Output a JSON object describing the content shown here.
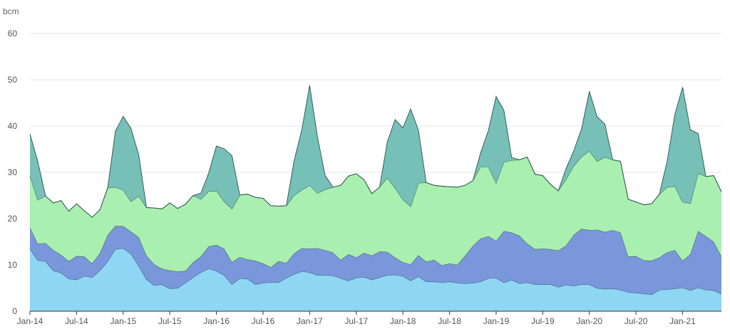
{
  "chart_data": {
    "type": "area",
    "stacked": true,
    "unit_label": "bcm",
    "title": "",
    "xlabel": "",
    "ylabel": "",
    "ylim": [
      0,
      60
    ],
    "y_ticks": [
      "0",
      "10",
      "20",
      "30",
      "40",
      "50",
      "60"
    ],
    "x_tick_labels": [
      "Jan-14",
      "Jul-14",
      "Jan-15",
      "Jul-15",
      "Jan-16",
      "Jul-16",
      "Jan-17",
      "Jul-17",
      "Jan-18",
      "Jul-18",
      "Jan-19",
      "Jul-19",
      "Jan-20",
      "Jul-20",
      "Jan-21"
    ],
    "x_start": "Jan-14",
    "grid": true,
    "legend": "none",
    "series": [
      {
        "color": "#8fd6f5",
        "values": [
          13.5,
          11.0,
          10.8,
          8.8,
          8.3,
          7.0,
          6.8,
          7.6,
          7.3,
          8.8,
          10.8,
          13.4,
          13.6,
          12.4,
          9.8,
          6.9,
          5.6,
          5.8,
          4.9,
          5.0,
          6.1,
          7.3,
          8.4,
          9.2,
          8.7,
          7.8,
          5.8,
          7.1,
          7.0,
          5.8,
          6.1,
          6.3,
          6.2,
          7.2,
          8.0,
          8.6,
          8.4,
          7.8,
          7.8,
          7.7,
          7.1,
          6.6,
          7.2,
          7.4,
          6.8,
          7.3,
          7.8,
          7.9,
          7.6,
          6.6,
          7.5,
          6.4,
          6.4,
          6.2,
          6.4,
          6.1,
          6.0,
          6.1,
          6.4,
          7.1,
          7.2,
          6.2,
          6.8,
          6.0,
          6.2,
          5.8,
          5.8,
          5.8,
          5.2,
          5.7,
          5.5,
          5.8,
          5.8,
          5.0,
          4.8,
          4.9,
          4.6,
          4.1,
          4.0,
          3.8,
          3.6,
          4.6,
          4.7,
          4.9,
          5.1,
          4.5,
          5.1,
          4.6,
          4.5,
          3.7
        ]
      },
      {
        "color": "#7b97dc",
        "values": [
          4.6,
          3.6,
          3.9,
          4.4,
          3.9,
          3.8,
          5.1,
          4.2,
          3.0,
          3.7,
          5.6,
          5.0,
          4.8,
          4.8,
          6.2,
          5.1,
          4.5,
          3.4,
          3.9,
          3.6,
          2.6,
          3.3,
          3.4,
          4.8,
          5.6,
          5.7,
          4.8,
          4.6,
          4.2,
          5.1,
          4.2,
          3.2,
          4.6,
          3.2,
          4.5,
          5.0,
          5.1,
          5.8,
          5.4,
          5.0,
          4.0,
          5.7,
          4.4,
          5.2,
          5.2,
          5.6,
          5.0,
          3.7,
          3.0,
          3.5,
          4.6,
          4.3,
          4.7,
          3.7,
          3.9,
          3.9,
          6.0,
          8.0,
          9.3,
          9.1,
          8.0,
          11.1,
          10.2,
          10.3,
          8.4,
          7.6,
          7.7,
          7.6,
          7.9,
          8.5,
          11.0,
          12.0,
          11.7,
          12.6,
          12.3,
          12.6,
          12.4,
          7.7,
          7.9,
          7.2,
          7.3,
          7.0,
          8.0,
          8.3,
          5.8,
          7.8,
          12.2,
          11.6,
          10.5,
          8.1
        ]
      },
      {
        "color": "#a9f0b0",
        "values": [
          11.2,
          9.4,
          10.2,
          10.2,
          11.7,
          10.8,
          11.3,
          9.9,
          10.0,
          9.4,
          10.2,
          8.4,
          7.8,
          6.5,
          8.9,
          10.4,
          12.2,
          12.9,
          14.6,
          13.6,
          14.4,
          14.4,
          12.4,
          11.9,
          11.7,
          10.2,
          11.5,
          13.4,
          14.1,
          13.7,
          14.1,
          13.3,
          11.9,
          12.4,
          12.5,
          12.6,
          13.7,
          11.9,
          13.1,
          14.1,
          16.1,
          16.9,
          18.1,
          15.8,
          13.4,
          13.9,
          16.0,
          15.0,
          13.5,
          12.5,
          15.6,
          17.1,
          16.1,
          17.1,
          16.6,
          16.8,
          15.2,
          14.1,
          15.5,
          15.0,
          12.5,
          14.9,
          15.6,
          16.4,
          18.7,
          16.2,
          15.8,
          14.0,
          12.9,
          14.3,
          14.9,
          15.6,
          17.1,
          14.8,
          16.2,
          15.2,
          15.4,
          12.4,
          11.7,
          12.0,
          12.3,
          13.6,
          14.1,
          13.8,
          12.7,
          11.0,
          12.5,
          12.9,
          14.3,
          14.0
        ]
      },
      {
        "color": "#76c0b8",
        "values": [
          9.0,
          8.4,
          0,
          0,
          0,
          0,
          0,
          0,
          0,
          0,
          0,
          12.1,
          15.9,
          15.8,
          8.9,
          0,
          0,
          0,
          0,
          0,
          0,
          0,
          1.3,
          3.9,
          9.7,
          11.4,
          11.5,
          0,
          0,
          0,
          0,
          0,
          0,
          0,
          7.5,
          13.1,
          21.6,
          12.2,
          3.0,
          0,
          0,
          0,
          0,
          0,
          0,
          0,
          7.8,
          14.8,
          15.5,
          21.1,
          11.4,
          0,
          0,
          0,
          0,
          0,
          0,
          0,
          3.0,
          7.8,
          18.7,
          11.2,
          0.6,
          0,
          0,
          0,
          0,
          0,
          0,
          2.3,
          3.3,
          6.0,
          12.9,
          9.6,
          7.1,
          0,
          0,
          0,
          0,
          0,
          0,
          0,
          5.5,
          15.5,
          24.8,
          15.9,
          8.6,
          0,
          0,
          0
        ]
      }
    ]
  }
}
